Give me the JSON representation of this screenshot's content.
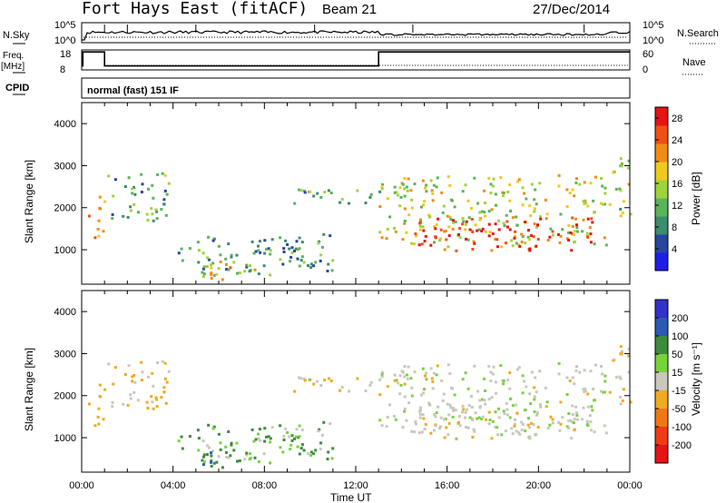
{
  "header": {
    "station": "Fort Hays East (fitACF)",
    "beam": "Beam 21",
    "date": "27/Dec/2014"
  },
  "strip": {
    "nsky_label": "N.Sky",
    "nsky_ticks": [
      "10^5",
      "10^0"
    ],
    "nsearch_label": "N.Search",
    "nsearch_ticks": [
      "10^5",
      "10^0"
    ],
    "freq_label": "Freq.",
    "freq_unit": "[MHz]",
    "freq_ticks": [
      "18",
      "8"
    ],
    "nave_label": "Nave",
    "nave_ticks": [
      "60",
      "0"
    ],
    "cpid_label": "CPID",
    "cpid_text": "normal (fast) 151 IF",
    "freq_steps": [
      {
        "t": 0.0,
        "v": 10
      },
      {
        "t": 0.05,
        "v": 17
      },
      {
        "t": 1.0,
        "v": 10
      },
      {
        "t": 13.0,
        "v": 17
      },
      {
        "t": 24.0,
        "v": 17
      }
    ]
  },
  "power_panel": {
    "ylabel": "Slant Range [km]",
    "yticks": [
      1000,
      2000,
      3000,
      4000
    ],
    "ylim": [
      180,
      4500
    ],
    "colorbar_label": "Power [dB]",
    "colorbar_ticks": [
      "4",
      "8",
      "12",
      "16",
      "20",
      "24",
      "28"
    ]
  },
  "velocity_panel": {
    "ylabel": "Slant Range [km]",
    "yticks": [
      1000,
      2000,
      3000,
      4000
    ],
    "ylim": [
      180,
      4500
    ],
    "colorbar_label": "Velocity [m s⁻¹]",
    "colorbar_ticks": [
      "200",
      "100",
      "50",
      "15",
      "-15",
      "-50",
      "-100",
      "-200"
    ]
  },
  "xaxis": {
    "label": "Time UT",
    "ticks": [
      "00:00",
      "04:00",
      "08:00",
      "12:00",
      "16:00",
      "20:00",
      "00:00"
    ],
    "xlim_hours": [
      0,
      24
    ]
  },
  "chart_data": {
    "type": "heatmap",
    "title": "Fort Hays East (fitACF) Beam 21 27/Dec/2014",
    "xlabel": "Time UT",
    "ylabel": "Slant Range [km]",
    "xlim": [
      0,
      24
    ],
    "ylim": [
      180,
      4500
    ],
    "power_scale_db": [
      0,
      30
    ],
    "velocity_scale": [
      -200,
      200
    ],
    "echo_regions": [
      {
        "t0": 0.2,
        "t1": 1.0,
        "r0": 1300,
        "r1": 2300,
        "power": 22,
        "velocity": -30
      },
      {
        "t0": 1.1,
        "t1": 3.8,
        "r0": 1700,
        "r1": 2900,
        "power": 11,
        "velocity": -10
      },
      {
        "t0": 4.0,
        "t1": 11.0,
        "r0": 400,
        "r1": 1400,
        "power": 10,
        "velocity": 25
      },
      {
        "t0": 5.0,
        "t1": 8.0,
        "r0": 300,
        "r1": 750,
        "power": 18,
        "velocity": 60
      },
      {
        "t0": 9.0,
        "t1": 13.0,
        "r0": 2100,
        "r1": 2500,
        "power": 12,
        "velocity": -5
      },
      {
        "t0": 13.0,
        "t1": 23.0,
        "r0": 1100,
        "r1": 2800,
        "power": 16,
        "velocity": 5
      },
      {
        "t0": 14.5,
        "t1": 22.5,
        "r0": 1000,
        "r1": 1800,
        "power": 28,
        "velocity": 0
      },
      {
        "t0": 23.0,
        "t1": 24.0,
        "r0": 1800,
        "r1": 3300,
        "power": 15,
        "velocity": -20
      }
    ]
  },
  "colors": {
    "power": [
      "#1e1ee6",
      "#2846a0",
      "#3c8c6e",
      "#5ab45a",
      "#a0d23c",
      "#f0c81e",
      "#f08c14",
      "#f05014",
      "#e61414"
    ],
    "velocity": [
      "#3232c8",
      "#2a5ab4",
      "#3c8c3c",
      "#78d23c",
      "#c8c8be",
      "#f0aa1e",
      "#f07814",
      "#f03c14",
      "#e61414"
    ]
  }
}
